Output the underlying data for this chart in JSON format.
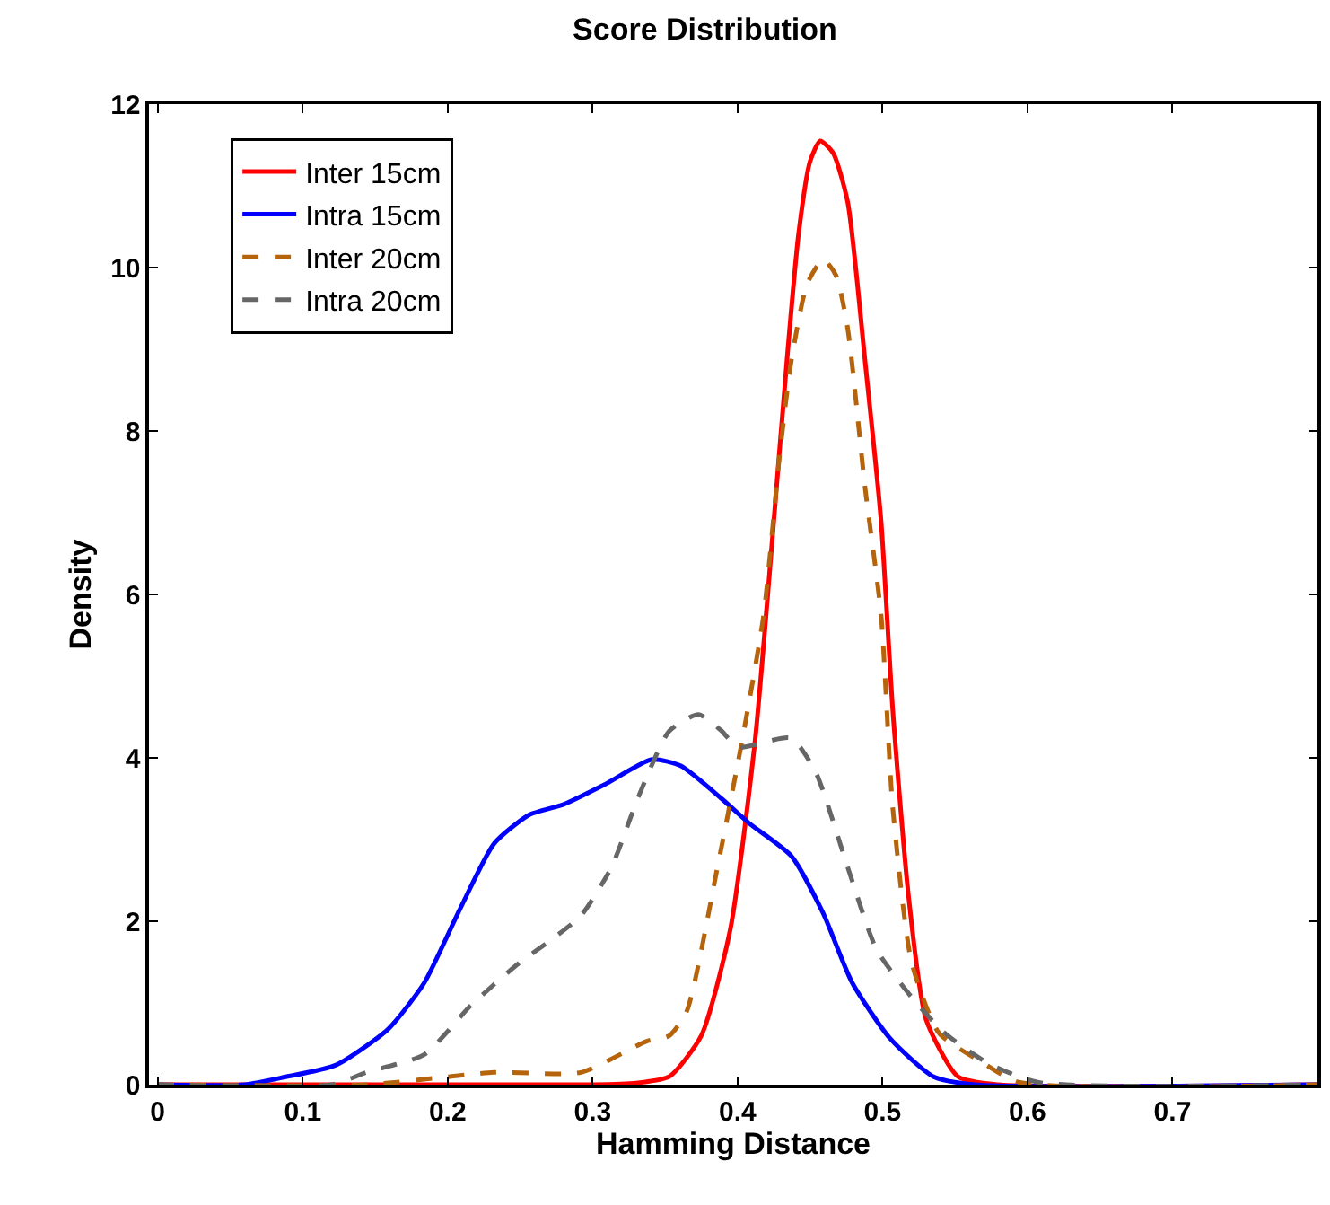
{
  "chart_data": {
    "type": "line",
    "title": "Score Distribution",
    "xlabel": "Hamming Distance",
    "ylabel": "Density",
    "xlim": [
      -0.006,
      0.8
    ],
    "xticks": [
      {
        "value": 0,
        "label": "0"
      },
      0.1,
      0.2,
      0.3,
      0.4,
      0.5,
      0.6,
      0.7
    ],
    "ylim": [
      0,
      12
    ],
    "yticks": [
      0,
      2,
      4,
      6,
      8,
      10,
      12
    ],
    "legend": "top left",
    "marker": "none",
    "series": [
      {
        "name": "Inter 15cm",
        "color": "#ff0000",
        "line_style": "solid",
        "x": [
          0,
          0.3,
          0.33,
          0.353,
          0.375,
          0.395,
          0.412,
          0.425,
          0.434,
          0.442,
          0.45,
          0.457,
          0.466,
          0.476,
          0.488,
          0.499,
          0.507,
          0.518,
          0.53,
          0.552,
          0.58,
          0.8
        ],
        "values": [
          0,
          0,
          0.02,
          0.1,
          0.6,
          1.9,
          4.2,
          6.9,
          8.85,
          10.4,
          11.3,
          11.55,
          11.4,
          10.8,
          8.85,
          6.9,
          4.6,
          2.3,
          0.8,
          0.1,
          0,
          0
        ]
      },
      {
        "name": "Intra 15cm",
        "color": "#0000ff",
        "line_style": "solid",
        "x": [
          0,
          0.06,
          0.087,
          0.123,
          0.159,
          0.184,
          0.208,
          0.232,
          0.256,
          0.28,
          0.308,
          0.341,
          0.361,
          0.389,
          0.408,
          0.437,
          0.459,
          0.479,
          0.505,
          0.535,
          0.564,
          0.8
        ],
        "values": [
          0,
          0,
          0.09,
          0.24,
          0.68,
          1.25,
          2.13,
          2.95,
          3.3,
          3.43,
          3.67,
          3.98,
          3.9,
          3.5,
          3.2,
          2.8,
          2.1,
          1.25,
          0.57,
          0.1,
          0,
          0
        ]
      },
      {
        "name": "Inter 20cm",
        "color": "#b5640c",
        "line_style": "dashed",
        "x": [
          0,
          0.144,
          0.232,
          0.292,
          0.337,
          0.353,
          0.365,
          0.386,
          0.403,
          0.418,
          0.429,
          0.437,
          0.448,
          0.459,
          0.468,
          0.476,
          0.488,
          0.499,
          0.507,
          0.52,
          0.539,
          0.569,
          0.594,
          0.8
        ],
        "values": [
          0,
          0,
          0.15,
          0.15,
          0.53,
          0.6,
          0.9,
          2.65,
          4.2,
          5.75,
          7.7,
          8.85,
          9.8,
          10.1,
          9.9,
          9.25,
          7.3,
          5.75,
          3.4,
          1.5,
          0.63,
          0.27,
          0.03,
          0
        ]
      },
      {
        "name": "Intra 20cm",
        "color": "#666666",
        "line_style": "dashed",
        "x": [
          0,
          0.12,
          0.144,
          0.184,
          0.216,
          0.248,
          0.272,
          0.292,
          0.313,
          0.332,
          0.353,
          0.373,
          0.389,
          0.4,
          0.437,
          0.454,
          0.476,
          0.496,
          0.522,
          0.543,
          0.572,
          0.607,
          0.8
        ],
        "values": [
          0,
          0,
          0.15,
          0.37,
          0.97,
          1.47,
          1.78,
          2.07,
          2.66,
          3.54,
          4.33,
          4.53,
          4.33,
          4.13,
          4.24,
          3.82,
          2.66,
          1.65,
          1.03,
          0.63,
          0.27,
          0.03,
          0
        ]
      }
    ]
  }
}
